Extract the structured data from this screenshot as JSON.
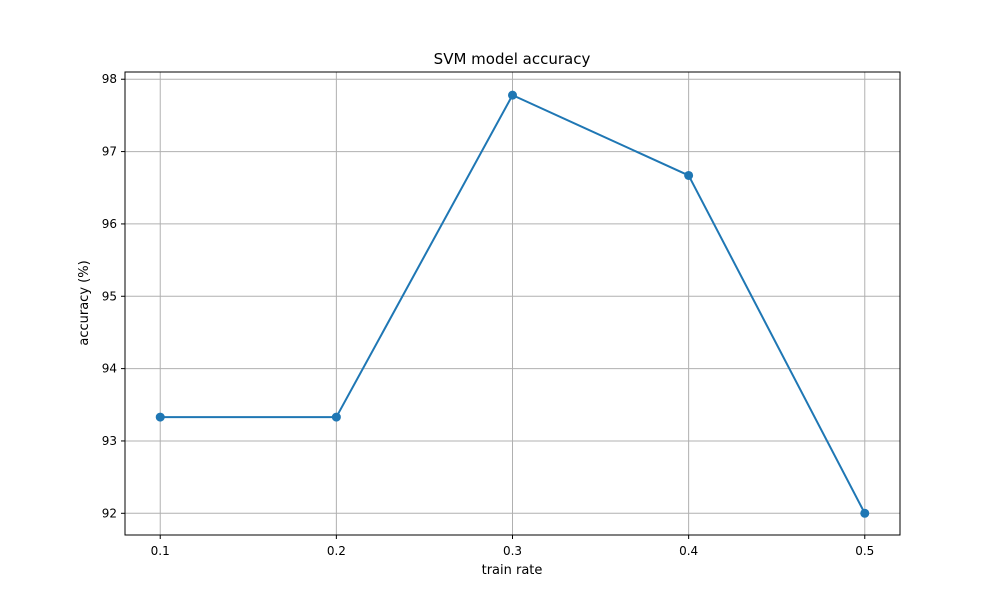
{
  "chart_data": {
    "type": "line",
    "title": "SVM model accuracy",
    "xlabel": "train rate",
    "ylabel": "accuracy (%)",
    "x": [
      0.1,
      0.2,
      0.3,
      0.4,
      0.5
    ],
    "x_tick_labels": [
      "0.1",
      "0.2",
      "0.3",
      "0.4",
      "0.5"
    ],
    "y_ticks": [
      92,
      93,
      94,
      95,
      96,
      97,
      98
    ],
    "y_tick_labels": [
      "92",
      "93",
      "94",
      "95",
      "96",
      "97",
      "98"
    ],
    "xlim": [
      0.08,
      0.52
    ],
    "ylim": [
      91.7,
      98.1
    ],
    "grid": true,
    "marker": "circle",
    "series": [
      {
        "values": [
          93.33,
          93.33,
          97.78,
          96.67,
          92.0
        ]
      }
    ],
    "colors": {
      "line": "#1f77b4",
      "grid": "#b0b0b0",
      "axis": "#000000"
    }
  }
}
